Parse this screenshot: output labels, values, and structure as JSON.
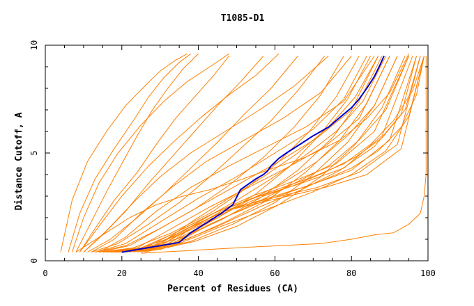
{
  "chart_data": {
    "type": "line",
    "title": "T1085-D1",
    "xlabel": "Percent of Residues (CA)",
    "ylabel": "Distance Cutoff, A",
    "xlim": [
      0,
      100
    ],
    "ylim": [
      0,
      10
    ],
    "x_ticks": [
      "0",
      "20",
      "40",
      "60",
      "80",
      "100"
    ],
    "y_ticks": [
      "0",
      "5",
      "10"
    ],
    "grid": false,
    "legend": "none",
    "colors": {
      "highlight": "#0000cc",
      "others": "#ff8000",
      "axes": "#000000"
    },
    "highlighted_series": {
      "x": [
        20,
        25,
        30,
        35,
        38,
        42,
        46,
        49,
        50,
        51,
        53,
        55,
        57,
        58,
        59,
        61,
        63,
        67,
        70,
        74,
        77,
        80,
        82,
        84,
        86,
        87.5,
        88.5
      ],
      "y": [
        0.4,
        0.55,
        0.7,
        0.85,
        1.3,
        1.75,
        2.2,
        2.6,
        2.95,
        3.3,
        3.55,
        3.8,
        4.0,
        4.15,
        4.4,
        4.75,
        5.0,
        5.45,
        5.8,
        6.2,
        6.65,
        7.1,
        7.5,
        8.0,
        8.55,
        9.1,
        9.5
      ]
    },
    "other_series": [
      {
        "x": [
          8,
          12,
          16,
          20,
          24,
          28,
          32,
          36,
          40
        ],
        "y": [
          0.4,
          1.8,
          3.2,
          4.5,
          5.8,
          7.0,
          8.0,
          8.9,
          9.6
        ]
      },
      {
        "x": [
          6,
          9,
          13,
          18,
          23,
          27,
          31,
          35,
          38
        ],
        "y": [
          0.4,
          2.2,
          3.8,
          5.2,
          6.5,
          7.6,
          8.5,
          9.2,
          9.6
        ]
      },
      {
        "x": [
          9,
          13,
          18,
          24,
          29,
          34,
          39,
          44,
          48
        ],
        "y": [
          0.4,
          1.5,
          2.8,
          4.1,
          5.4,
          6.6,
          7.6,
          8.6,
          9.5
        ]
      },
      {
        "x": [
          10,
          15,
          21,
          27,
          33,
          39,
          45,
          51,
          57
        ],
        "y": [
          0.4,
          1.2,
          2.3,
          3.6,
          4.8,
          6.0,
          7.2,
          8.3,
          9.5
        ]
      },
      {
        "x": [
          11,
          17,
          24,
          31,
          38,
          45,
          52,
          59,
          66
        ],
        "y": [
          0.4,
          1.0,
          2.0,
          3.1,
          4.3,
          5.5,
          6.8,
          8.0,
          9.5
        ]
      },
      {
        "x": [
          12,
          19,
          27,
          35,
          43,
          51,
          59,
          66,
          73
        ],
        "y": [
          0.4,
          0.8,
          1.7,
          2.7,
          3.9,
          5.2,
          6.5,
          7.9,
          9.5
        ]
      },
      {
        "x": [
          13,
          21,
          30,
          39,
          48,
          57,
          65,
          72,
          78
        ],
        "y": [
          0.4,
          0.7,
          1.5,
          2.4,
          3.5,
          4.8,
          6.2,
          7.7,
          9.5
        ]
      },
      {
        "x": [
          14,
          23,
          33,
          43,
          52,
          61,
          69,
          76,
          82
        ],
        "y": [
          0.4,
          0.6,
          1.3,
          2.2,
          3.3,
          4.6,
          6.0,
          7.6,
          9.5
        ]
      },
      {
        "x": [
          15,
          25,
          35,
          45,
          55,
          64,
          72,
          79,
          85
        ],
        "y": [
          0.4,
          0.6,
          1.2,
          2.0,
          3.1,
          4.4,
          5.9,
          7.5,
          9.5
        ]
      },
      {
        "x": [
          16,
          26,
          36,
          46,
          56,
          66,
          75,
          82,
          88
        ],
        "y": [
          0.4,
          0.6,
          1.1,
          1.9,
          2.9,
          4.2,
          5.7,
          7.4,
          9.5
        ]
      },
      {
        "x": [
          17,
          27,
          37,
          47,
          58,
          68,
          77,
          84,
          90
        ],
        "y": [
          0.4,
          0.5,
          1.0,
          1.8,
          2.8,
          4.1,
          5.6,
          7.3,
          9.5
        ]
      },
      {
        "x": [
          18,
          28,
          38,
          49,
          60,
          70,
          79,
          86,
          92
        ],
        "y": [
          0.4,
          0.5,
          0.9,
          1.7,
          2.7,
          4.0,
          5.5,
          7.2,
          9.5
        ]
      },
      {
        "x": [
          19,
          29,
          39,
          50,
          61,
          72,
          81,
          88,
          94
        ],
        "y": [
          0.4,
          0.5,
          0.9,
          1.6,
          2.6,
          3.9,
          5.4,
          7.1,
          9.5
        ]
      },
      {
        "x": [
          16,
          25,
          34,
          44,
          54,
          65,
          76,
          86,
          95
        ],
        "y": [
          0.4,
          0.6,
          1.3,
          2.2,
          3.0,
          3.7,
          4.5,
          6.0,
          9.5
        ]
      },
      {
        "x": [
          17,
          26,
          35,
          45,
          56,
          67,
          78,
          88,
          96
        ],
        "y": [
          0.4,
          0.6,
          1.4,
          2.3,
          3.0,
          3.6,
          4.3,
          5.8,
          9.5
        ]
      },
      {
        "x": [
          18,
          27,
          36,
          47,
          58,
          69,
          80,
          90,
          97
        ],
        "y": [
          0.4,
          0.6,
          1.4,
          2.3,
          2.9,
          3.5,
          4.2,
          5.6,
          9.5
        ]
      },
      {
        "x": [
          19,
          28,
          37,
          48,
          59,
          71,
          82,
          92,
          98
        ],
        "y": [
          0.4,
          0.6,
          1.5,
          2.4,
          2.9,
          3.4,
          4.1,
          5.4,
          9.5
        ]
      },
      {
        "x": [
          20,
          29,
          38,
          49,
          61,
          73,
          84,
          93,
          99
        ],
        "y": [
          0.4,
          0.6,
          1.5,
          2.4,
          2.9,
          3.4,
          4.0,
          5.2,
          9.5
        ]
      },
      {
        "x": [
          15,
          24,
          33,
          43,
          53,
          63,
          73,
          82,
          90
        ],
        "y": [
          0.4,
          0.6,
          1.5,
          2.5,
          3.4,
          4.3,
          5.3,
          6.6,
          9.5
        ]
      },
      {
        "x": [
          14,
          22,
          31,
          41,
          51,
          61,
          71,
          80,
          87
        ],
        "y": [
          0.4,
          0.7,
          1.6,
          2.6,
          3.6,
          4.6,
          5.7,
          7.0,
          9.5
        ]
      },
      {
        "x": [
          13,
          21,
          30,
          40,
          50,
          60,
          70,
          78,
          84
        ],
        "y": [
          0.4,
          0.8,
          1.8,
          2.9,
          3.9,
          5.0,
          6.1,
          7.5,
          9.5
        ]
      },
      {
        "x": [
          21,
          30,
          39,
          48,
          57,
          66,
          74,
          81,
          87
        ],
        "y": [
          0.4,
          0.8,
          1.9,
          2.9,
          3.9,
          5.0,
          6.2,
          7.6,
          9.5
        ]
      },
      {
        "x": [
          22,
          31,
          40,
          50,
          59,
          68,
          76,
          83,
          89
        ],
        "y": [
          0.4,
          0.8,
          1.8,
          2.8,
          3.8,
          4.9,
          6.0,
          7.4,
          9.5
        ]
      },
      {
        "x": [
          23,
          32,
          42,
          52,
          62,
          71,
          79,
          86,
          92
        ],
        "y": [
          0.4,
          0.8,
          1.7,
          2.7,
          3.6,
          4.6,
          5.8,
          7.2,
          9.5
        ]
      },
      {
        "x": [
          24,
          33,
          43,
          54,
          64,
          74,
          82,
          89,
          95
        ],
        "y": [
          0.4,
          0.8,
          1.7,
          2.6,
          3.5,
          4.4,
          5.6,
          7.0,
          9.5
        ]
      },
      {
        "x": [
          25,
          34,
          45,
          56,
          67,
          77,
          86,
          93,
          97
        ],
        "y": [
          0.4,
          0.8,
          1.6,
          2.5,
          3.3,
          4.2,
          5.3,
          6.8,
          9.5
        ]
      },
      {
        "x": [
          26,
          35,
          46,
          58,
          70,
          80,
          89,
          95,
          99
        ],
        "y": [
          0.4,
          0.8,
          1.6,
          2.4,
          3.2,
          4.0,
          5.1,
          6.7,
          9.5
        ]
      },
      {
        "x": [
          12,
          18,
          25,
          33,
          42,
          52,
          62,
          72,
          80
        ],
        "y": [
          0.4,
          1.0,
          2.2,
          3.4,
          4.6,
          5.6,
          6.6,
          7.8,
          9.5
        ]
      },
      {
        "x": [
          10,
          16,
          23,
          30,
          38,
          47,
          56,
          65,
          74
        ],
        "y": [
          0.4,
          1.4,
          2.7,
          3.9,
          5.0,
          6.0,
          7.0,
          8.1,
          9.5
        ]
      },
      {
        "x": [
          14,
          21,
          29,
          38,
          48,
          58,
          68,
          78,
          86
        ],
        "y": [
          0.4,
          1.1,
          2.3,
          3.4,
          4.4,
          5.3,
          6.2,
          7.4,
          9.5
        ]
      },
      {
        "x": [
          4,
          7,
          11,
          16,
          21,
          26,
          30,
          34,
          37
        ],
        "y": [
          0.4,
          2.8,
          4.6,
          6.0,
          7.2,
          8.1,
          8.8,
          9.3,
          9.6
        ]
      },
      {
        "x": [
          7,
          10,
          14,
          19,
          25,
          31,
          37,
          43,
          48
        ],
        "y": [
          0.4,
          2.0,
          3.6,
          5.0,
          6.3,
          7.4,
          8.3,
          9.0,
          9.6
        ]
      },
      {
        "x": [
          9,
          14,
          20,
          27,
          34,
          41,
          48,
          55,
          61
        ],
        "y": [
          0.4,
          1.6,
          3.0,
          4.4,
          5.6,
          6.7,
          7.7,
          8.6,
          9.6
        ]
      },
      {
        "x": [
          8,
          15,
          22,
          29,
          36,
          43,
          50,
          58,
          68,
          77,
          84,
          90,
          95
        ],
        "y": [
          0.4,
          1.2,
          2.0,
          2.6,
          3.0,
          3.3,
          3.7,
          4.2,
          4.8,
          5.6,
          6.6,
          7.8,
          9.6
        ]
      },
      {
        "x": [
          25,
          40,
          55,
          72,
          80,
          86,
          91,
          95,
          98,
          99,
          99.5,
          99.5,
          99.5
        ],
        "y": [
          0.35,
          0.5,
          0.65,
          0.8,
          1.0,
          1.2,
          1.3,
          1.7,
          2.2,
          3.0,
          4.0,
          6.5,
          9.5
        ]
      },
      {
        "x": [
          30,
          38,
          46,
          54,
          62,
          70,
          78,
          85,
          91,
          96,
          99
        ],
        "y": [
          0.5,
          1.5,
          2.3,
          2.9,
          3.4,
          3.9,
          4.5,
          5.4,
          6.5,
          7.9,
          9.5
        ]
      },
      {
        "x": [
          32,
          40,
          48,
          56,
          64,
          72,
          80,
          87,
          93,
          97,
          99
        ],
        "y": [
          0.6,
          1.4,
          2.1,
          2.7,
          3.2,
          3.7,
          4.3,
          5.1,
          6.2,
          7.7,
          9.5
        ]
      },
      {
        "x": [
          33,
          41,
          49,
          57,
          65,
          73,
          81,
          88,
          94,
          98
        ],
        "y": [
          0.7,
          1.6,
          2.4,
          3.0,
          3.5,
          4.1,
          4.8,
          5.7,
          7.0,
          9.5
        ]
      }
    ]
  }
}
